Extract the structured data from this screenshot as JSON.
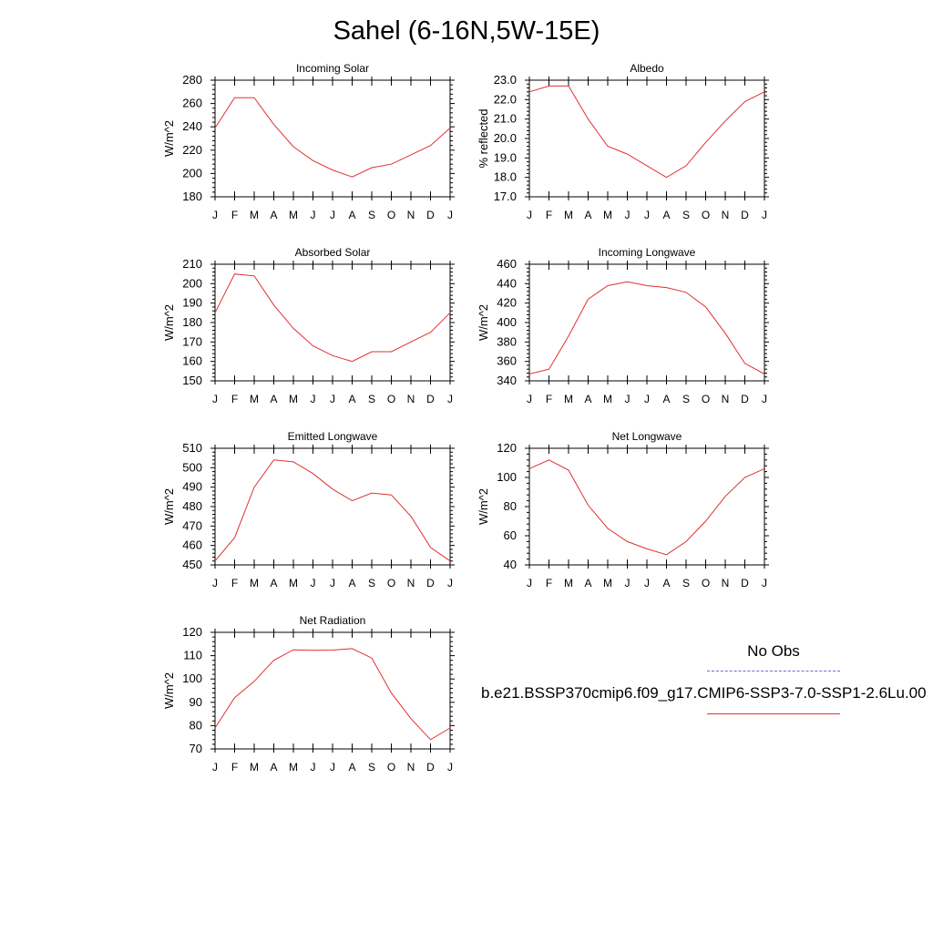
{
  "title": "Sahel (6-16N,5W-15E)",
  "legend": {
    "obs_label": "No Obs",
    "model_label": "b.e21.BSSP370cmip6.f09_g17.CMIP6-SSP3-7.0-SSP1-2.6Lu.00",
    "obs_color": "#6a6ae0",
    "model_color": "#e03030"
  },
  "chart_data": [
    {
      "type": "line",
      "title": "Incoming Solar",
      "ylabel": "W/m^2",
      "x": [
        "J",
        "F",
        "M",
        "A",
        "M",
        "J",
        "J",
        "A",
        "S",
        "O",
        "N",
        "D",
        "J"
      ],
      "ylim": [
        180,
        280
      ],
      "yticks": [
        "180",
        "200",
        "220",
        "240",
        "260",
        "280"
      ],
      "series": [
        {
          "values": [
            239,
            265,
            265,
            242,
            223,
            211,
            203,
            197,
            205,
            208,
            216,
            224,
            239
          ]
        }
      ]
    },
    {
      "type": "line",
      "title": "Albedo",
      "ylabel": "% reflected",
      "x": [
        "J",
        "F",
        "M",
        "A",
        "M",
        "J",
        "J",
        "A",
        "S",
        "O",
        "N",
        "D",
        "J"
      ],
      "ylim": [
        17.0,
        23.0
      ],
      "yticks": [
        "17.0",
        "18.0",
        "19.0",
        "20.0",
        "21.0",
        "22.0",
        "23.0"
      ],
      "series": [
        {
          "values": [
            22.4,
            22.7,
            22.7,
            21.0,
            19.6,
            19.2,
            18.6,
            18.0,
            18.6,
            19.8,
            20.9,
            21.9,
            22.4
          ]
        }
      ]
    },
    {
      "type": "line",
      "title": "Absorbed Solar",
      "ylabel": "W/m^2",
      "x": [
        "J",
        "F",
        "M",
        "A",
        "M",
        "J",
        "J",
        "A",
        "S",
        "O",
        "N",
        "D",
        "J"
      ],
      "ylim": [
        150,
        210
      ],
      "yticks": [
        "150",
        "160",
        "170",
        "180",
        "190",
        "200",
        "210"
      ],
      "series": [
        {
          "values": [
            185,
            205,
            204,
            189,
            177,
            168,
            163,
            160,
            165,
            165,
            170,
            175,
            185
          ]
        }
      ]
    },
    {
      "type": "line",
      "title": "Incoming Longwave",
      "ylabel": "W/m^2",
      "x": [
        "J",
        "F",
        "M",
        "A",
        "M",
        "J",
        "J",
        "A",
        "S",
        "O",
        "N",
        "D",
        "J"
      ],
      "ylim": [
        340,
        460
      ],
      "yticks": [
        "340",
        "360",
        "380",
        "400",
        "420",
        "440",
        "460"
      ],
      "series": [
        {
          "values": [
            347,
            352,
            386,
            424,
            438,
            442,
            438,
            436,
            431,
            416,
            389,
            358,
            347
          ]
        }
      ]
    },
    {
      "type": "line",
      "title": "Emitted Longwave",
      "ylabel": "W/m^2",
      "x": [
        "J",
        "F",
        "M",
        "A",
        "M",
        "J",
        "J",
        "A",
        "S",
        "O",
        "N",
        "D",
        "J"
      ],
      "ylim": [
        450,
        510
      ],
      "yticks": [
        "450",
        "460",
        "470",
        "480",
        "490",
        "500",
        "510"
      ],
      "series": [
        {
          "values": [
            452,
            464,
            490,
            504,
            503,
            497,
            489,
            483,
            487,
            486,
            475,
            459,
            452
          ]
        }
      ]
    },
    {
      "type": "line",
      "title": "Net Longwave",
      "ylabel": "W/m^2",
      "x": [
        "J",
        "F",
        "M",
        "A",
        "M",
        "J",
        "J",
        "A",
        "S",
        "O",
        "N",
        "D",
        "J"
      ],
      "ylim": [
        40,
        120
      ],
      "yticks": [
        "40",
        "60",
        "80",
        "100",
        "120"
      ],
      "series": [
        {
          "values": [
            106,
            112,
            105,
            81,
            65,
            56,
            51,
            47,
            56,
            70,
            87,
            100,
            106
          ]
        }
      ]
    },
    {
      "type": "line",
      "title": "Net Radiation",
      "ylabel": "W/m^2",
      "x": [
        "J",
        "F",
        "M",
        "A",
        "M",
        "J",
        "J",
        "A",
        "S",
        "O",
        "N",
        "D",
        "J"
      ],
      "ylim": [
        70,
        120
      ],
      "yticks": [
        "70",
        "80",
        "90",
        "100",
        "110",
        "120"
      ],
      "series": [
        {
          "values": [
            79,
            92,
            99,
            108,
            112.5,
            112.3,
            112.4,
            113,
            109,
            94,
            83,
            74,
            79
          ]
        }
      ]
    }
  ]
}
